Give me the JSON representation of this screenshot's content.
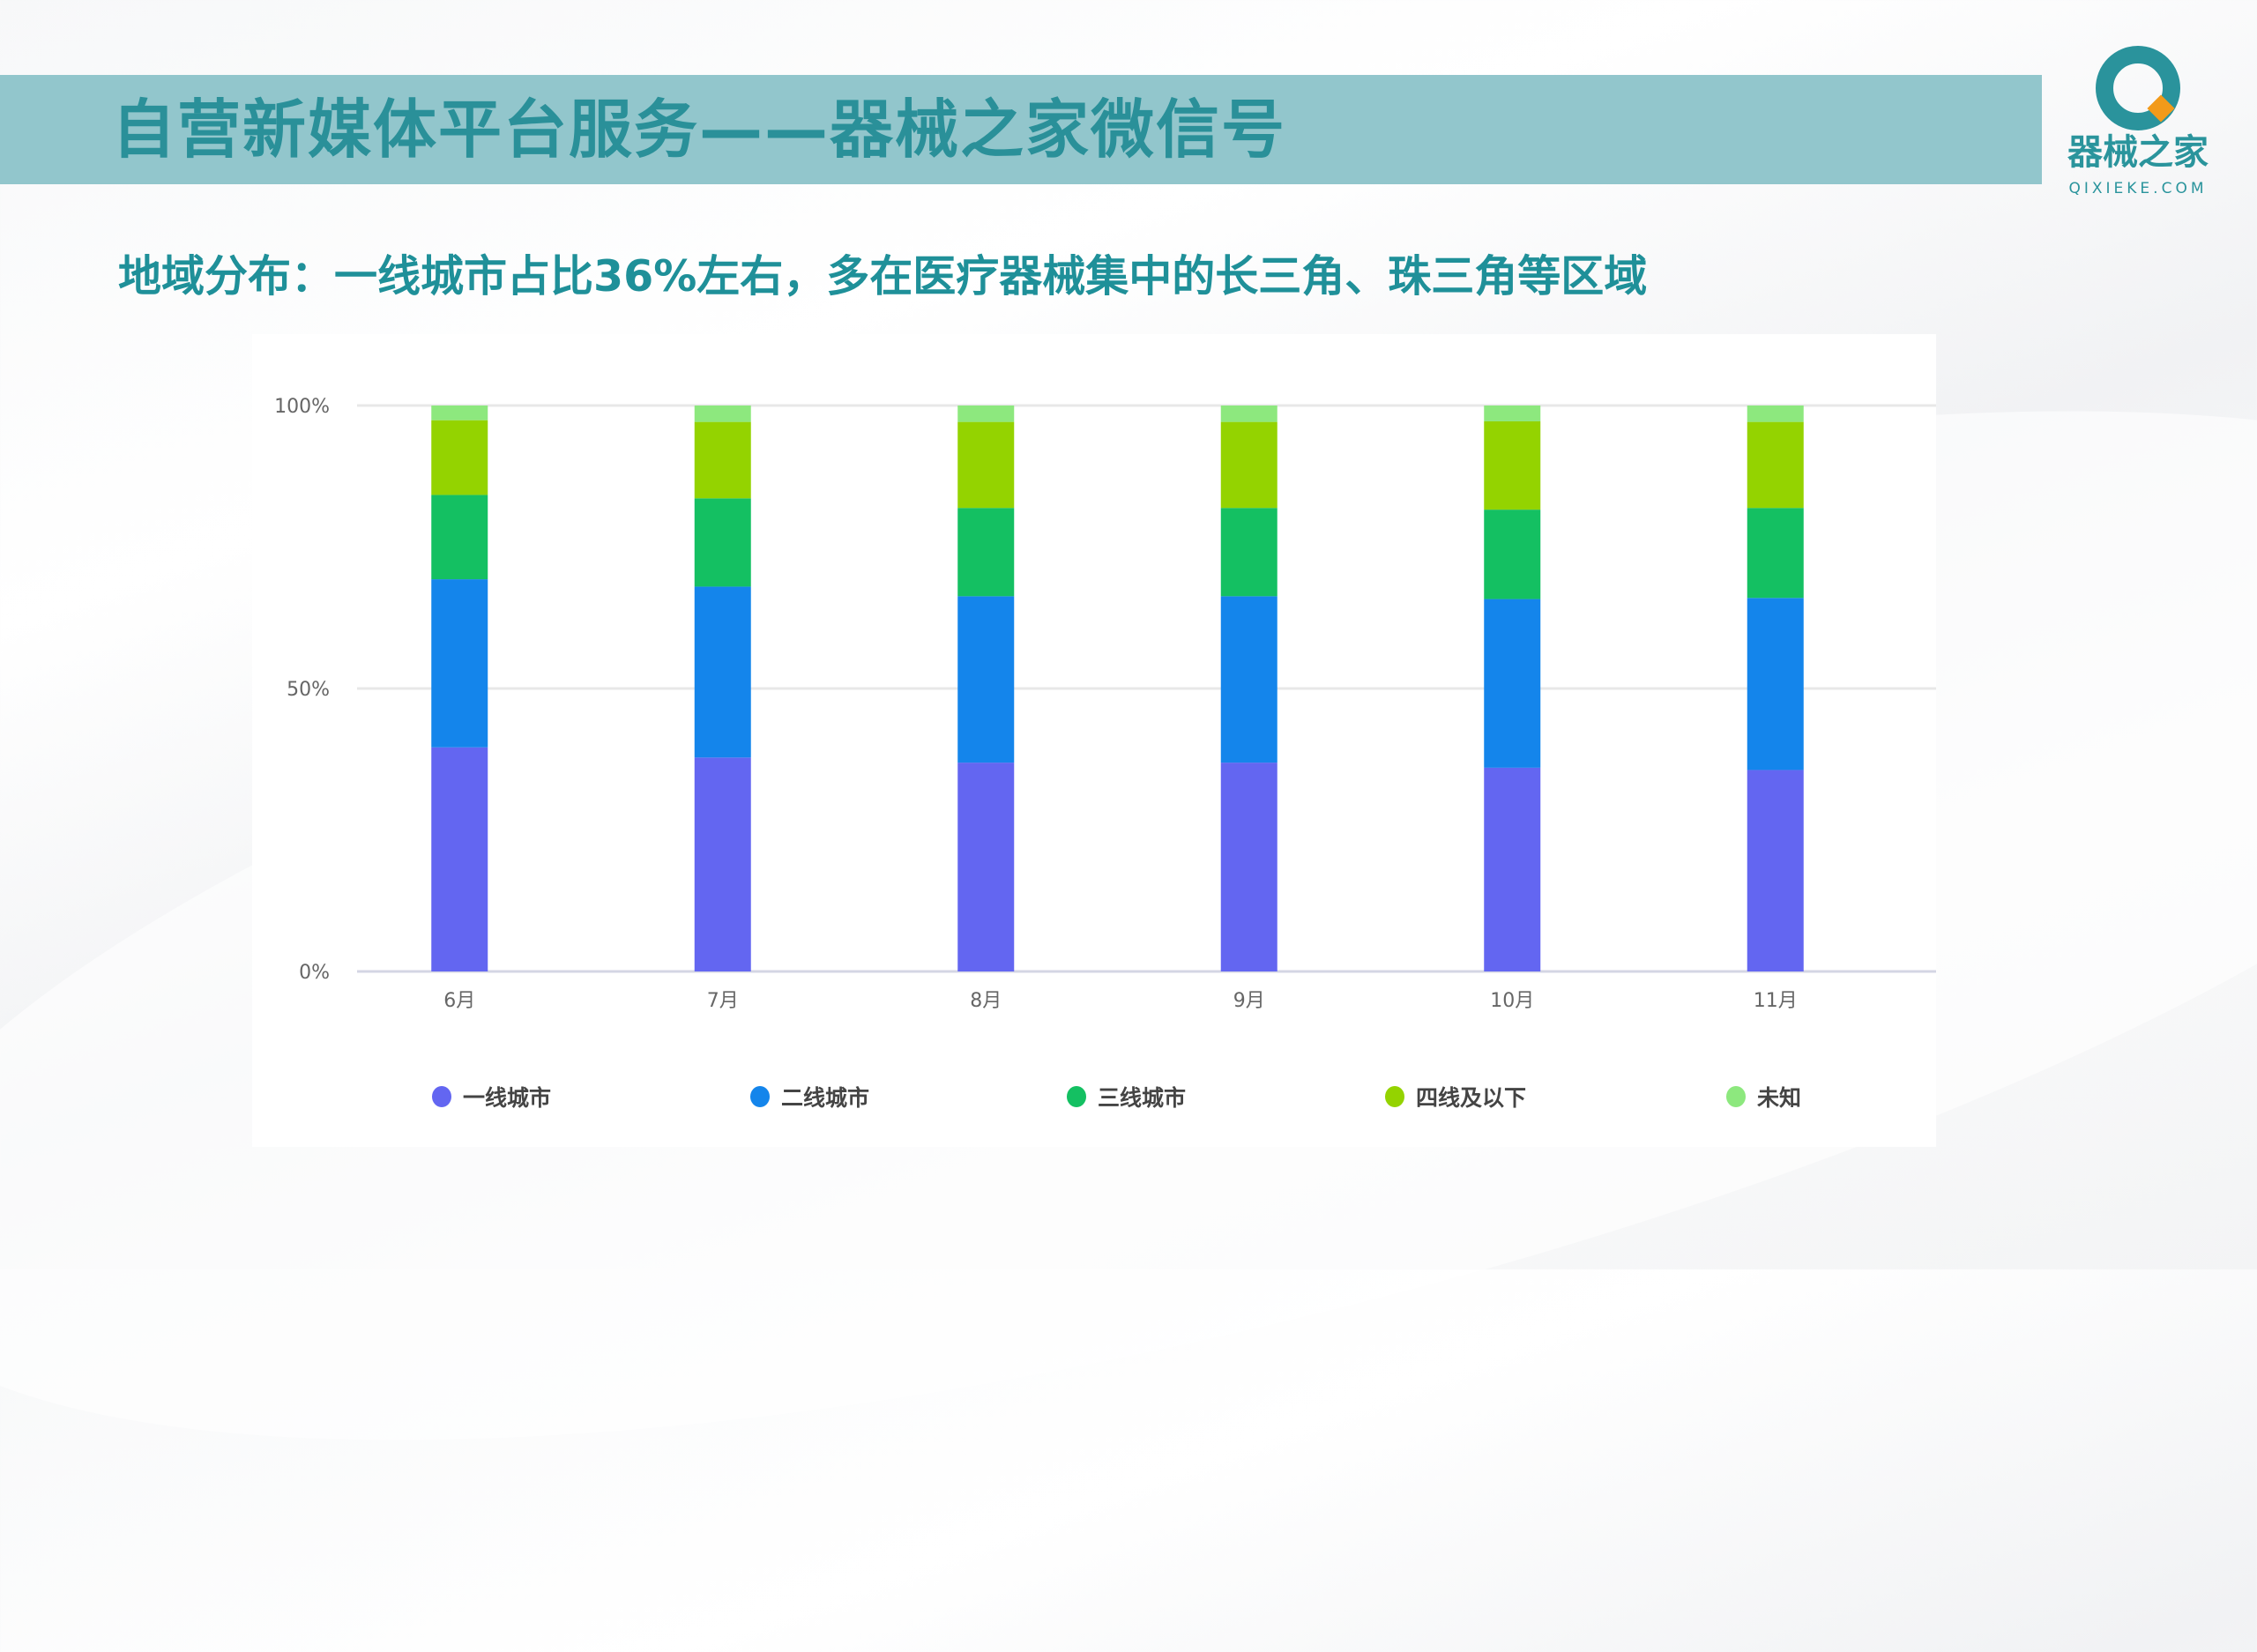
{
  "header": {
    "title": "自营新媒体平台服务——器械之家微信号"
  },
  "logo": {
    "text": "器械之家",
    "sub": "QIXIEKE.COM",
    "colors": {
      "ring": "#2a939c",
      "diamond": "#f29a1a"
    }
  },
  "subtitle": "地域分布：一线城市占比36%左右，多在医疗器械集中的长三角、珠三角等区域",
  "chart_data": {
    "type": "bar",
    "stacked": true,
    "normalized": true,
    "categories": [
      "6月",
      "7月",
      "8月",
      "9月",
      "10月",
      "11月"
    ],
    "series": [
      {
        "name": "一线城市",
        "color": "#6366f1",
        "values": [
          39.6,
          37.8,
          36.9,
          36.9,
          36.0,
          35.6
        ]
      },
      {
        "name": "二线城市",
        "color": "#1485eb",
        "values": [
          29.7,
          30.2,
          29.4,
          29.4,
          29.8,
          30.4
        ]
      },
      {
        "name": "三线城市",
        "color": "#14c062",
        "values": [
          14.9,
          15.6,
          15.6,
          15.6,
          15.8,
          15.9
        ]
      },
      {
        "name": "四线及以下",
        "color": "#94d300",
        "values": [
          13.2,
          13.5,
          15.2,
          15.2,
          15.6,
          15.2
        ]
      },
      {
        "name": "未知",
        "color": "#8de87e",
        "values": [
          2.6,
          2.9,
          2.9,
          2.9,
          2.8,
          2.9
        ]
      }
    ],
    "yticks": [
      "0%",
      "50%",
      "100%"
    ],
    "ylim": [
      0,
      100
    ],
    "grid": true,
    "legend": "bottom"
  }
}
